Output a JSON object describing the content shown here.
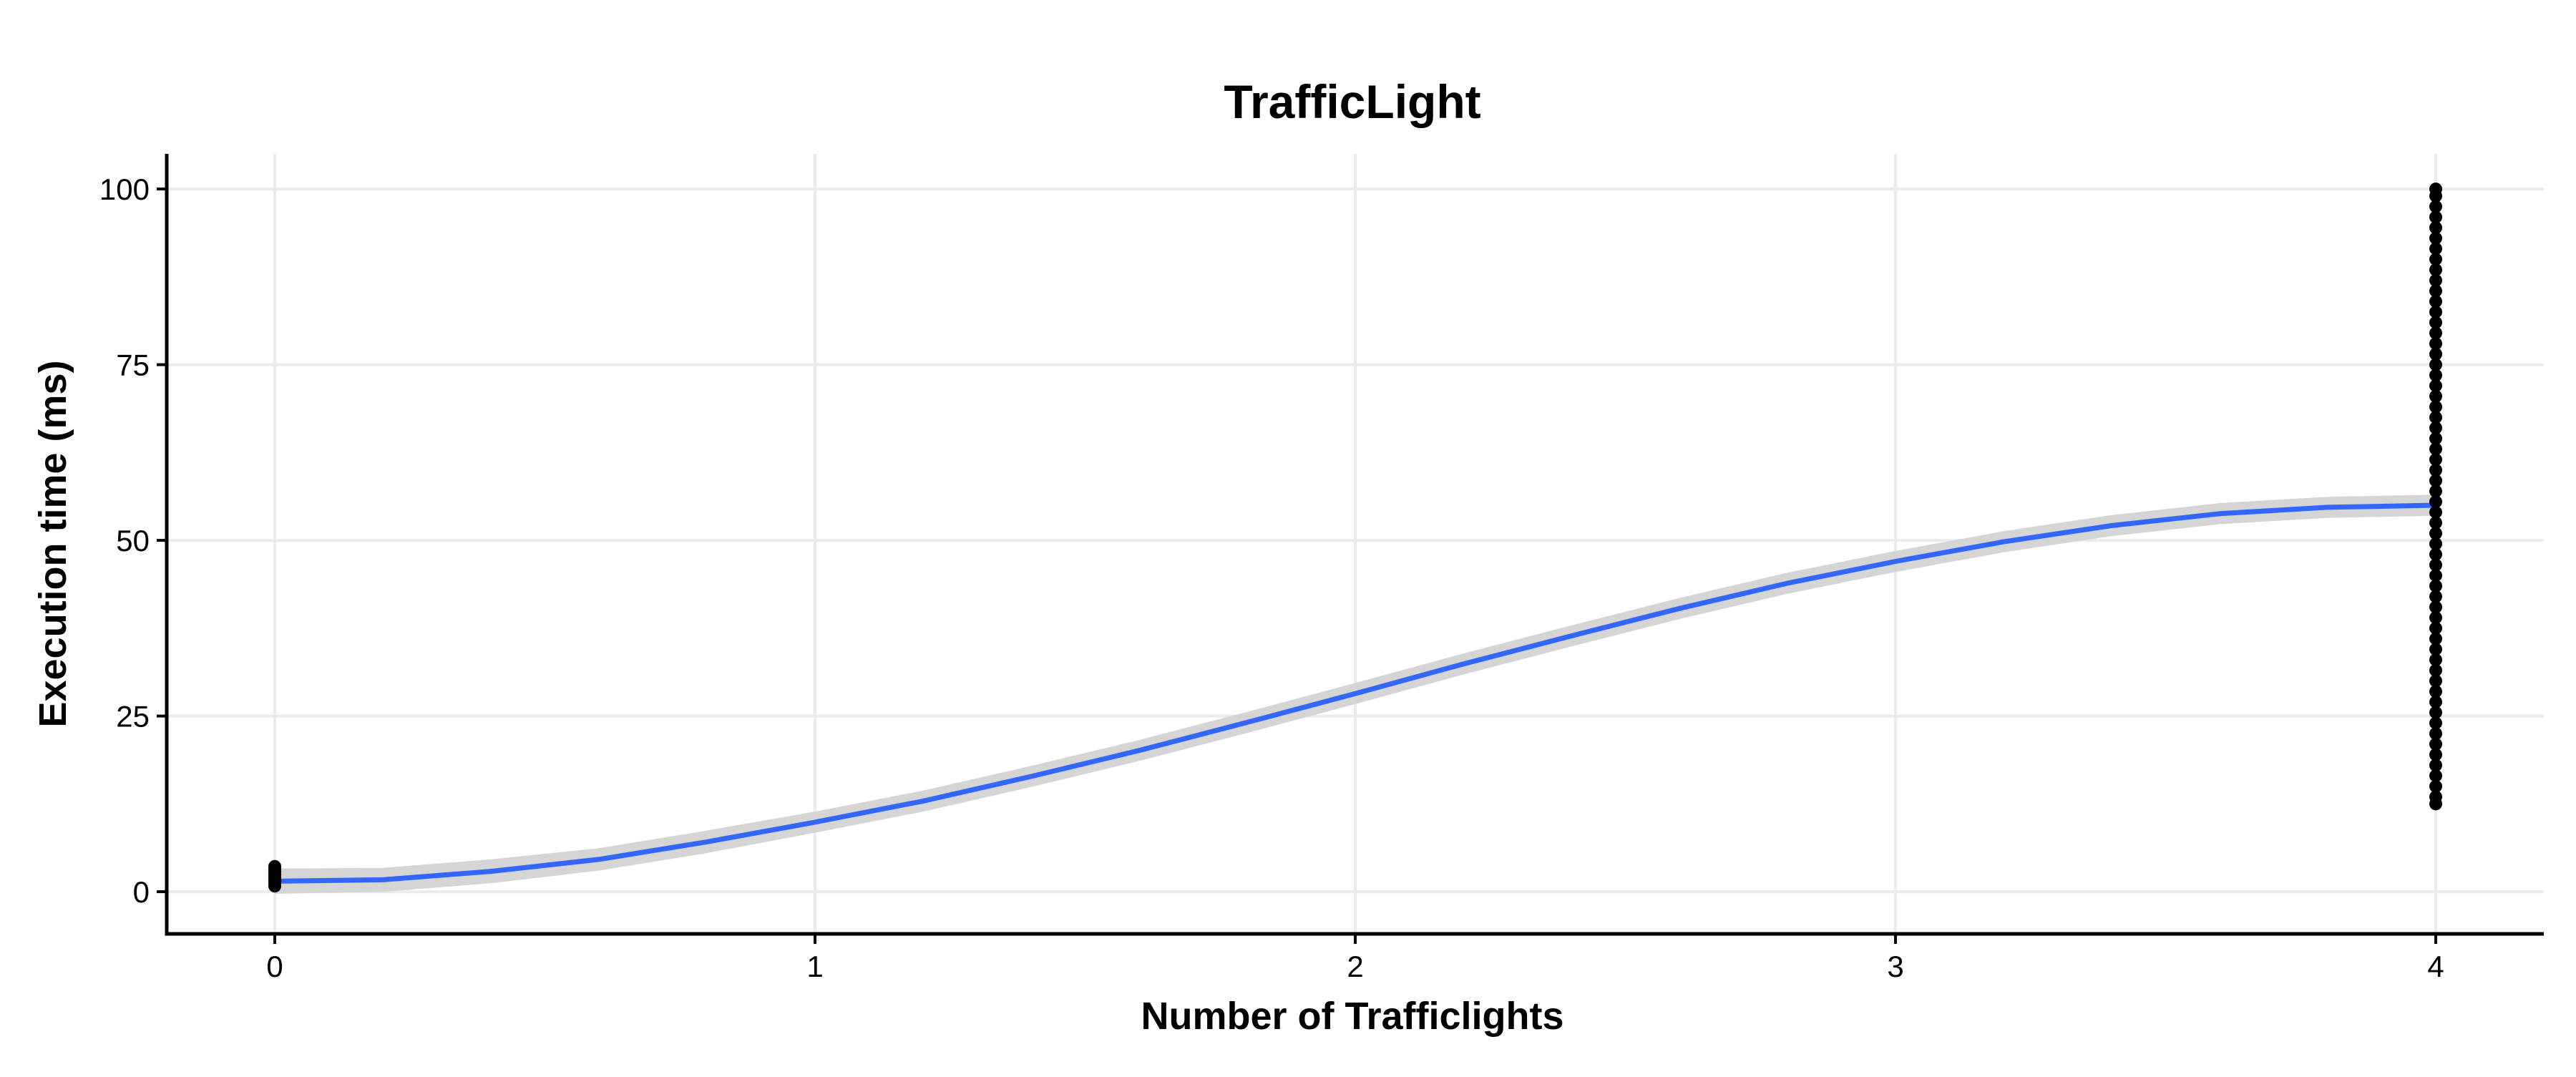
{
  "chart_data": {
    "type": "scatter",
    "title": "TrafficLight",
    "xlabel": "Number of Trafficlights",
    "ylabel": "Execution time (ms)",
    "xlim": [
      -0.2,
      4.2
    ],
    "ylim": [
      -6,
      105
    ],
    "x_ticks": [
      0,
      1,
      2,
      3,
      4
    ],
    "y_ticks": [
      0,
      25,
      50,
      75,
      100
    ],
    "grid": true,
    "legend": "none",
    "colors": {
      "points": "#000000",
      "smooth_line": "#3366FF",
      "confidence_band": "#D3D3D3",
      "grid": "#EBEBEB",
      "axis": "#000000"
    },
    "points": [
      {
        "x": 0,
        "y": 0.8
      },
      {
        "x": 0,
        "y": 1.2
      },
      {
        "x": 0,
        "y": 1.6
      },
      {
        "x": 0,
        "y": 2.0
      },
      {
        "x": 0,
        "y": 2.4
      },
      {
        "x": 0,
        "y": 2.8
      },
      {
        "x": 0,
        "y": 3.2
      },
      {
        "x": 0,
        "y": 3.6
      },
      {
        "x": 4,
        "y": 12.5
      },
      {
        "x": 4,
        "y": 13.5
      },
      {
        "x": 4,
        "y": 15
      },
      {
        "x": 4,
        "y": 16.5
      },
      {
        "x": 4,
        "y": 18
      },
      {
        "x": 4,
        "y": 19.5
      },
      {
        "x": 4,
        "y": 21
      },
      {
        "x": 4,
        "y": 22.5
      },
      {
        "x": 4,
        "y": 24
      },
      {
        "x": 4,
        "y": 25.5
      },
      {
        "x": 4,
        "y": 27
      },
      {
        "x": 4,
        "y": 28.5
      },
      {
        "x": 4,
        "y": 30
      },
      {
        "x": 4,
        "y": 31.5
      },
      {
        "x": 4,
        "y": 33
      },
      {
        "x": 4,
        "y": 34.5
      },
      {
        "x": 4,
        "y": 36
      },
      {
        "x": 4,
        "y": 37.5
      },
      {
        "x": 4,
        "y": 39
      },
      {
        "x": 4,
        "y": 40.5
      },
      {
        "x": 4,
        "y": 42
      },
      {
        "x": 4,
        "y": 43.5
      },
      {
        "x": 4,
        "y": 45
      },
      {
        "x": 4,
        "y": 46.5
      },
      {
        "x": 4,
        "y": 48
      },
      {
        "x": 4,
        "y": 49.5
      },
      {
        "x": 4,
        "y": 51
      },
      {
        "x": 4,
        "y": 52.5
      },
      {
        "x": 4,
        "y": 54
      },
      {
        "x": 4,
        "y": 55.5
      },
      {
        "x": 4,
        "y": 57
      },
      {
        "x": 4,
        "y": 58.5
      },
      {
        "x": 4,
        "y": 60
      },
      {
        "x": 4,
        "y": 61.5
      },
      {
        "x": 4,
        "y": 63
      },
      {
        "x": 4,
        "y": 64.5
      },
      {
        "x": 4,
        "y": 66
      },
      {
        "x": 4,
        "y": 67.5
      },
      {
        "x": 4,
        "y": 69
      },
      {
        "x": 4,
        "y": 70.5
      },
      {
        "x": 4,
        "y": 72
      },
      {
        "x": 4,
        "y": 73.5
      },
      {
        "x": 4,
        "y": 75
      },
      {
        "x": 4,
        "y": 76.5
      },
      {
        "x": 4,
        "y": 78
      },
      {
        "x": 4,
        "y": 79.5
      },
      {
        "x": 4,
        "y": 81
      },
      {
        "x": 4,
        "y": 82.5
      },
      {
        "x": 4,
        "y": 84
      },
      {
        "x": 4,
        "y": 85.5
      },
      {
        "x": 4,
        "y": 87
      },
      {
        "x": 4,
        "y": 88.5
      },
      {
        "x": 4,
        "y": 90
      },
      {
        "x": 4,
        "y": 91.5
      },
      {
        "x": 4,
        "y": 93
      },
      {
        "x": 4,
        "y": 94.5
      },
      {
        "x": 4,
        "y": 96
      },
      {
        "x": 4,
        "y": 97.5
      },
      {
        "x": 4,
        "y": 99
      },
      {
        "x": 4,
        "y": 100
      }
    ],
    "smooth": {
      "x": [
        0,
        0.2,
        0.4,
        0.6,
        0.8,
        1.0,
        1.2,
        1.4,
        1.6,
        1.8,
        2.0,
        2.2,
        2.4,
        2.6,
        2.8,
        3.0,
        3.2,
        3.4,
        3.6,
        3.8,
        4.0
      ],
      "y": [
        1.5,
        1.7,
        2.9,
        4.6,
        7.1,
        9.9,
        12.9,
        16.4,
        20.1,
        24.1,
        28.2,
        32.4,
        36.4,
        40.3,
        43.9,
        47.0,
        49.8,
        52.1,
        53.8,
        54.7,
        55.0
      ],
      "band_halfwidth": [
        1.8,
        1.7,
        1.7,
        1.6,
        1.6,
        1.5,
        1.5,
        1.5,
        1.5,
        1.5,
        1.5,
        1.5,
        1.5,
        1.5,
        1.5,
        1.5,
        1.5,
        1.5,
        1.5,
        1.5,
        1.5
      ]
    }
  }
}
